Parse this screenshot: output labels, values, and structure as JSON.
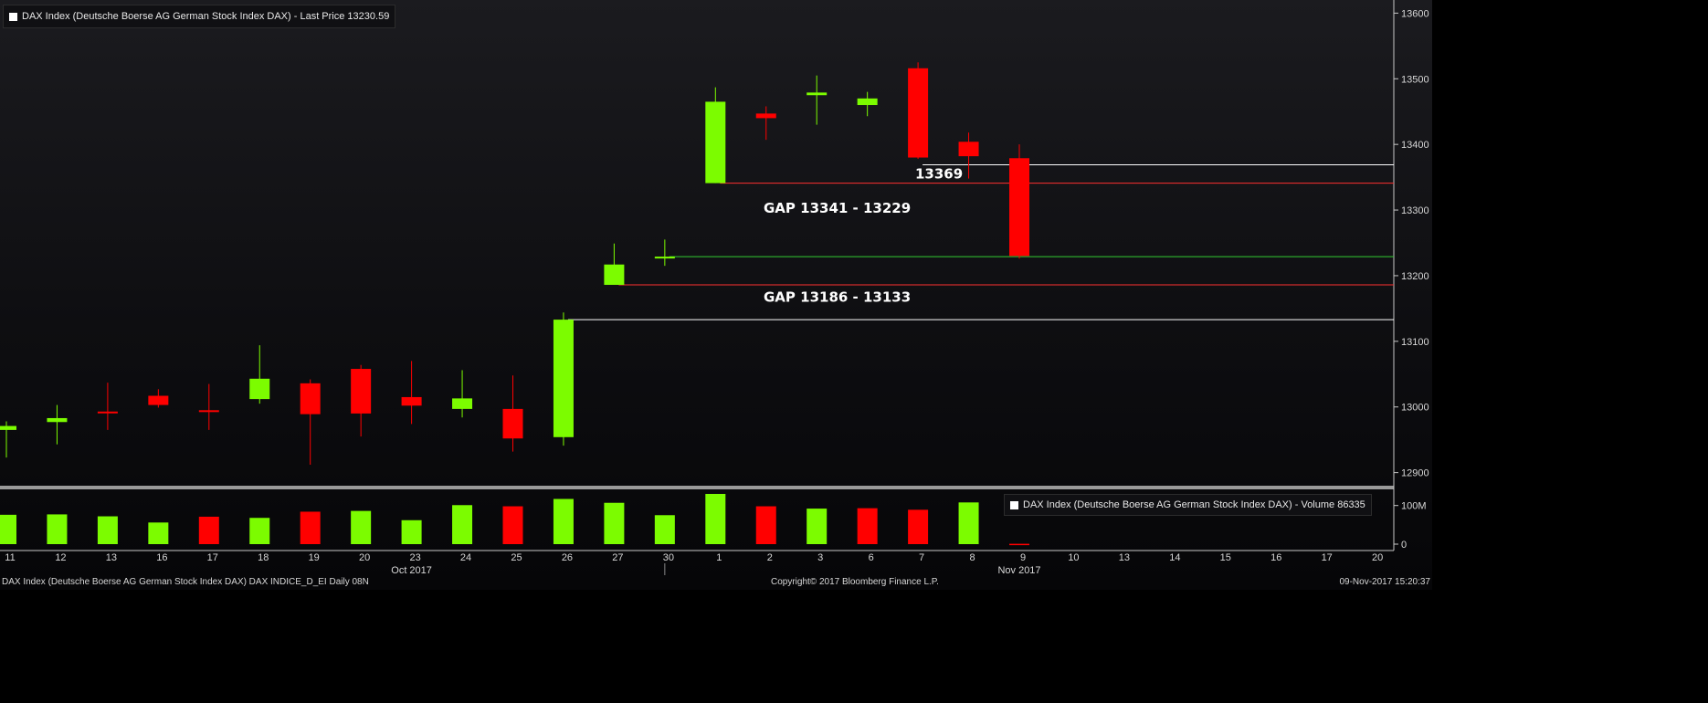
{
  "chart_data": [
    {
      "type": "candlestick",
      "title": "DAX Index (Deutsche Boerse AG German Stock Index DAX) - Last Price 13230.59",
      "ylim": [
        12880,
        13620
      ],
      "yticks": [
        12900,
        13000,
        13100,
        13200,
        13300,
        13400,
        13500,
        13600
      ],
      "x_labels": [
        "11",
        "12",
        "13",
        "16",
        "17",
        "18",
        "19",
        "20",
        "23",
        "24",
        "25",
        "26",
        "27",
        "30",
        "1",
        "2",
        "3",
        "6",
        "7",
        "8",
        "9",
        "10",
        "13",
        "14",
        "15",
        "16",
        "17",
        "20"
      ],
      "x_period_labels": [
        {
          "text": "Oct 2017",
          "category": "23"
        },
        {
          "text": "Nov 2017",
          "category": "9"
        }
      ],
      "colors": {
        "up": "#7cfc00",
        "down": "#ff0000",
        "axis": "#c8c8c8"
      },
      "candles": [
        {
          "date": "11",
          "open": 12965,
          "high": 12978,
          "low": 12923,
          "close": 12971
        },
        {
          "date": "12",
          "open": 12977,
          "high": 13003,
          "low": 12943,
          "close": 12983
        },
        {
          "date": "13",
          "open": 12993,
          "high": 13037,
          "low": 12965,
          "close": 12992
        },
        {
          "date": "16",
          "open": 13017,
          "high": 13027,
          "low": 12999,
          "close": 13003
        },
        {
          "date": "17",
          "open": 12995,
          "high": 13035,
          "low": 12965,
          "close": 12994
        },
        {
          "date": "18",
          "open": 13012,
          "high": 13094,
          "low": 13005,
          "close": 13043
        },
        {
          "date": "19",
          "open": 13036,
          "high": 13042,
          "low": 12912,
          "close": 12989
        },
        {
          "date": "20",
          "open": 13058,
          "high": 13064,
          "low": 12955,
          "close": 12990
        },
        {
          "date": "23",
          "open": 13015,
          "high": 13070,
          "low": 12974,
          "close": 13002
        },
        {
          "date": "24",
          "open": 12997,
          "high": 13056,
          "low": 12984,
          "close": 13013
        },
        {
          "date": "25",
          "open": 12997,
          "high": 13048,
          "low": 12932,
          "close": 12952
        },
        {
          "date": "26",
          "open": 12954,
          "high": 13144,
          "low": 12941,
          "close": 13133
        },
        {
          "date": "27",
          "open": 13186,
          "high": 13249,
          "low": 13186,
          "close": 13217
        },
        {
          "date": "30",
          "open": 13227,
          "high": 13255,
          "low": 13215,
          "close": 13229
        },
        {
          "date": "1",
          "open": 13341,
          "high": 13487,
          "low": 13341,
          "close": 13465
        },
        {
          "date": "2",
          "open": 13447,
          "high": 13458,
          "low": 13407,
          "close": 13440
        },
        {
          "date": "3",
          "open": 13475,
          "high": 13505,
          "low": 13430,
          "close": 13479
        },
        {
          "date": "6",
          "open": 13460,
          "high": 13480,
          "low": 13443,
          "close": 13470
        },
        {
          "date": "7",
          "open": 13516,
          "high": 13525,
          "low": 13378,
          "close": 13380
        },
        {
          "date": "8",
          "open": 13404,
          "high": 13418,
          "low": 13348,
          "close": 13382
        },
        {
          "date": "9",
          "open": 13379,
          "high": 13400,
          "low": 13226,
          "close": 13230
        }
      ],
      "annotations": [
        {
          "text": "13369",
          "price": 13369,
          "line_from": "7",
          "line_color": "#ffffff",
          "text_at": "7"
        },
        {
          "text": "GAP 13341 - 13229",
          "price": 13341,
          "line_from": "1",
          "line_color": "#ff3030",
          "text_at": "2"
        },
        {
          "price": 13229,
          "line_from": "30",
          "line_color": "#32cd32"
        },
        {
          "text": "GAP 13186 - 13133",
          "price": 13186,
          "line_from": "27",
          "line_color": "#ff3030",
          "text_at": "2"
        },
        {
          "price": 13133,
          "line_from": "26",
          "line_color": "#ffffff"
        }
      ]
    },
    {
      "type": "bar",
      "title": "DAX Index (Deutsche Boerse AG German Stock Index DAX) - Volume 86335",
      "ylim": [
        0,
        130
      ],
      "yticks": [
        {
          "value": 0,
          "label": "0"
        },
        {
          "value": 100,
          "label": "100M"
        }
      ],
      "unit": "M",
      "categories": [
        "11",
        "12",
        "13",
        "16",
        "17",
        "18",
        "19",
        "20",
        "23",
        "24",
        "25",
        "26",
        "27",
        "30",
        "1",
        "2",
        "3",
        "6",
        "7",
        "8",
        "9"
      ],
      "values": [
        76,
        77,
        72,
        56,
        71,
        68,
        84,
        86,
        62,
        101,
        98,
        117,
        107,
        75,
        130,
        98,
        92,
        93,
        89,
        108,
        0.9
      ],
      "directions": [
        "up",
        "up",
        "up",
        "up",
        "down",
        "up",
        "down",
        "up",
        "up",
        "up",
        "down",
        "up",
        "up",
        "up",
        "up",
        "down",
        "up",
        "down",
        "down",
        "up",
        "down"
      ]
    }
  ],
  "footer": {
    "left": "DAX Index (Deutsche Boerse AG German Stock Index DAX) DAX INDICE_D_EI  Daily 08N",
    "center": "Copyright© 2017 Bloomberg Finance L.P.",
    "right": "09-Nov-2017 15:20:37"
  }
}
